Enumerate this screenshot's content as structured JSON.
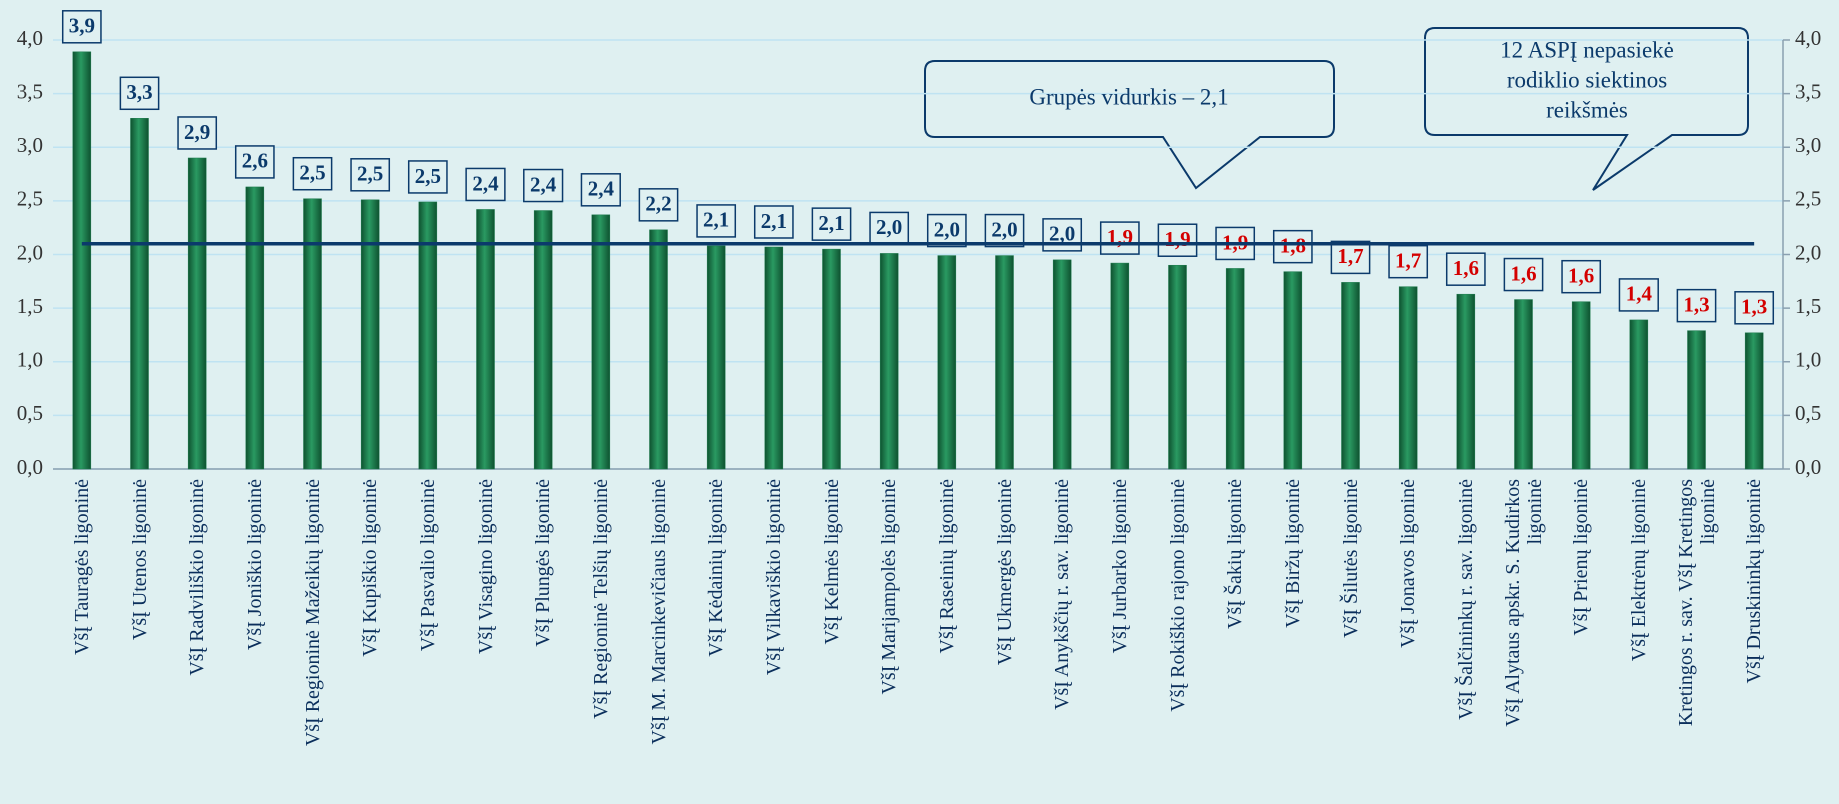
{
  "chart_data": {
    "type": "bar",
    "categories": [
      "VšĮ Tauragės ligoninė",
      "VšĮ Utenos ligoninė",
      "VšĮ Radviliškio ligoninė",
      "VšĮ Joniškio ligoninė",
      "VšĮ Regioninė Mažeikių ligoninė",
      "VšĮ Kupiškio ligoninė",
      "VšĮ Pasvalio ligoninė",
      "VšĮ Visagino ligoninė",
      "VšĮ Plungės ligoninė",
      "VšĮ Regioninė Telšių ligoninė",
      "VšĮ M. Marcinkevičiaus ligoninė",
      "VšĮ Kėdainių ligoninė",
      "VšĮ Vilkaviškio ligoninė",
      "VšĮ Kelmės ligoninė",
      "VšĮ Marijampolės ligoninė",
      "VšĮ Raseinių ligoninė",
      "VšĮ Ukmergės ligoninė",
      "VšĮ Anykščių r. sav. ligoninė",
      "VšĮ Jurbarko ligoninė",
      "VšĮ Rokiškio rajono ligoninė",
      "VšĮ Šakių ligoninė",
      "VšĮ Biržų ligoninė",
      "VšĮ Šilutės ligoninė",
      "VšĮ Jonavos ligoninė",
      "VšĮ Šalčininkų r. sav. ligoninė",
      "VšĮ Alytaus apskr. S. Kudirkos\nligoninė",
      "VšĮ Prienų ligoninė",
      "VšĮ Elektrėnų ligoninė",
      "Kretingos r. sav. VšĮ Kretingos\nligoninė",
      "VšĮ Druskininkų ligoninė"
    ],
    "values": [
      3.89,
      3.27,
      2.9,
      2.63,
      2.52,
      2.51,
      2.49,
      2.42,
      2.41,
      2.37,
      2.23,
      2.08,
      2.07,
      2.05,
      2.01,
      1.99,
      1.99,
      1.95,
      1.92,
      1.9,
      1.87,
      1.84,
      1.74,
      1.7,
      1.63,
      1.58,
      1.56,
      1.39,
      1.29,
      1.27
    ],
    "value_labels": [
      "3,9",
      "3,3",
      "2,9",
      "2,6",
      "2,5",
      "2,5",
      "2,5",
      "2,4",
      "2,4",
      "2,4",
      "2,2",
      "2,1",
      "2,1",
      "2,1",
      "2,0",
      "2,0",
      "2,0",
      "2,0",
      "1,9",
      "1,9",
      "1,9",
      "1,8",
      "1,7",
      "1,7",
      "1,6",
      "1,6",
      "1,6",
      "1,4",
      "1,3",
      "1,3"
    ],
    "value_label_colors": [
      "#0b3a6b",
      "#0b3a6b",
      "#0b3a6b",
      "#0b3a6b",
      "#0b3a6b",
      "#0b3a6b",
      "#0b3a6b",
      "#0b3a6b",
      "#0b3a6b",
      "#0b3a6b",
      "#0b3a6b",
      "#0b3a6b",
      "#0b3a6b",
      "#0b3a6b",
      "#0b3a6b",
      "#0b3a6b",
      "#0b3a6b",
      "#0b3a6b",
      "#d40000",
      "#d40000",
      "#d40000",
      "#d40000",
      "#d40000",
      "#d40000",
      "#d40000",
      "#d40000",
      "#d40000",
      "#d40000",
      "#d40000",
      "#d40000"
    ],
    "color": "#1c7a4c",
    "ylim": [
      0,
      4
    ],
    "yticks": [
      {
        "value": 0,
        "label": "0,0"
      },
      {
        "value": 0.5,
        "label": "0,5"
      },
      {
        "value": 1,
        "label": "1,0"
      },
      {
        "value": 1.5,
        "label": "1,5"
      },
      {
        "value": 2,
        "label": "2,0"
      },
      {
        "value": 2.5,
        "label": "2,5"
      },
      {
        "value": 3,
        "label": "3,0"
      },
      {
        "value": 3.5,
        "label": "3,5"
      },
      {
        "value": 4,
        "label": "4,0"
      }
    ],
    "y2lim": [
      0,
      4
    ],
    "y2ticks": [
      {
        "value": 0,
        "label": "0,0"
      },
      {
        "value": 0.5,
        "label": "0,5"
      },
      {
        "value": 1,
        "label": "1,0"
      },
      {
        "value": 1.5,
        "label": "1,5"
      },
      {
        "value": 2,
        "label": "2,0"
      },
      {
        "value": 2.5,
        "label": "2,5"
      },
      {
        "value": 3,
        "label": "3,0"
      },
      {
        "value": 3.5,
        "label": "3,5"
      },
      {
        "value": 4,
        "label": "4,0"
      }
    ],
    "grid": true,
    "reference_line": {
      "value": 2.1,
      "color": "#0b3a6b"
    },
    "annotations": [
      {
        "lines": [
          "Grupės vidurkis – 2,1"
        ]
      },
      {
        "lines": [
          "12 ASPĮ nepasiekė",
          "rodiklio siektinos",
          "reikšmės"
        ]
      }
    ]
  }
}
